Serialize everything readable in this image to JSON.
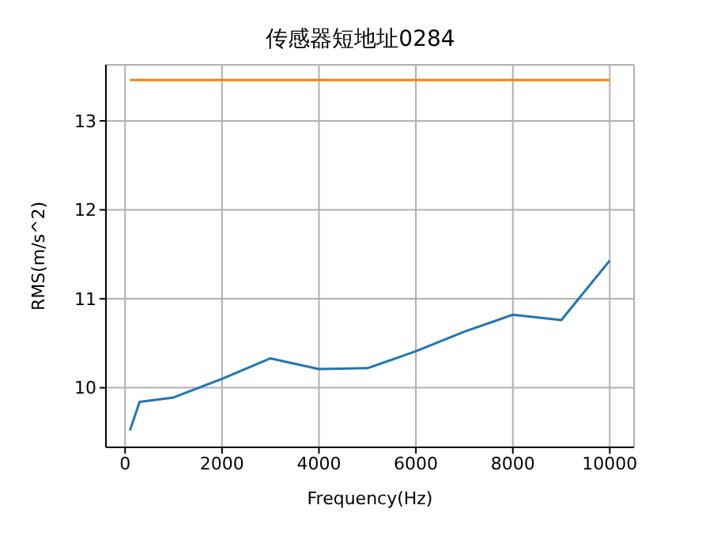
{
  "chart_data": {
    "type": "line",
    "title": "传感器短地址0284",
    "xlabel": "Frequency(Hz)",
    "ylabel": "RMS(m/s^2)",
    "series": [
      {
        "color": "#1f77b4",
        "x": [
          100,
          300,
          1000,
          2000,
          3000,
          4000,
          5000,
          6000,
          7000,
          8000,
          9000,
          10000
        ],
        "values": [
          9.52,
          9.84,
          9.89,
          10.1,
          10.33,
          10.21,
          10.22,
          10.41,
          10.63,
          10.82,
          10.76,
          11.43
        ]
      },
      {
        "color": "#ff7f0e",
        "x": [
          100,
          10000
        ],
        "values": [
          13.46,
          13.46
        ]
      }
    ],
    "xlim": [
      -395,
      10500
    ],
    "xticks": [
      0,
      2000,
      4000,
      6000,
      8000,
      10000
    ],
    "ylim": [
      9.33,
      13.63
    ],
    "yticks": [
      10,
      11,
      12,
      13
    ],
    "grid": true,
    "marker": "none",
    "line_style": "solid"
  }
}
